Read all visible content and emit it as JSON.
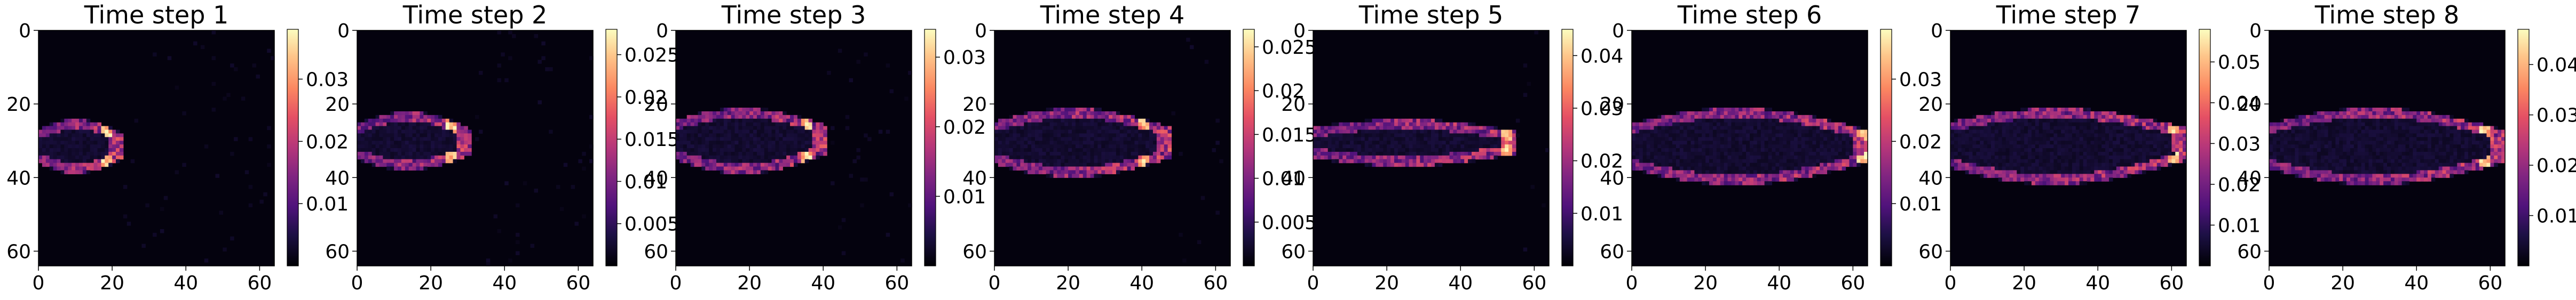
{
  "colormap": "magma",
  "chart_data": [
    {
      "type": "heatmap",
      "title": "Time step 1",
      "xticks": [
        0,
        20,
        40,
        60
      ],
      "yticks": [
        0,
        20,
        40,
        60
      ],
      "xlim": [
        0,
        64
      ],
      "ylim": [
        64,
        0
      ],
      "grid": "64x64",
      "colorbar": {
        "vmin": 0,
        "vmax": 0.038,
        "ticks": [
          0.01,
          0.02,
          0.03
        ]
      },
      "shape": {
        "x_end": 22,
        "center_row": 31,
        "upper_row": 25,
        "lower_row": 37,
        "hot_x": 18
      }
    },
    {
      "type": "heatmap",
      "title": "Time step 2",
      "xticks": [
        0,
        20,
        40,
        60
      ],
      "yticks": [
        0,
        20,
        40,
        60
      ],
      "xlim": [
        0,
        64
      ],
      "ylim": [
        64,
        0
      ],
      "grid": "64x64",
      "colorbar": {
        "vmin": 0,
        "vmax": 0.028,
        "ticks": [
          0.005,
          0.01,
          0.015,
          0.02,
          0.025
        ]
      },
      "shape": {
        "x_end": 30,
        "center_row": 30,
        "upper_row": 23,
        "lower_row": 36,
        "hot_x": 25
      }
    },
    {
      "type": "heatmap",
      "title": "Time step 3",
      "xticks": [
        0,
        20,
        40,
        60
      ],
      "yticks": [
        0,
        20,
        40,
        60
      ],
      "xlim": [
        0,
        64
      ],
      "ylim": [
        64,
        0
      ],
      "grid": "64x64",
      "colorbar": {
        "vmin": 0,
        "vmax": 0.034,
        "ticks": [
          0.01,
          0.02,
          0.03
        ]
      },
      "shape": {
        "x_end": 40,
        "center_row": 29,
        "upper_row": 22,
        "lower_row": 37,
        "hot_x": 35
      }
    },
    {
      "type": "heatmap",
      "title": "Time step 4",
      "xticks": [
        0,
        20,
        40,
        60
      ],
      "yticks": [
        0,
        20,
        40,
        60
      ],
      "xlim": [
        0,
        64
      ],
      "ylim": [
        64,
        0
      ],
      "grid": "64x64",
      "colorbar": {
        "vmin": 0,
        "vmax": 0.027,
        "ticks": [
          0.005,
          0.01,
          0.015,
          0.02,
          0.025
        ]
      },
      "shape": {
        "x_end": 47,
        "center_row": 30,
        "upper_row": 22,
        "lower_row": 38,
        "hot_x": 40
      }
    },
    {
      "type": "heatmap",
      "title": "Time step 5",
      "xticks": [
        0,
        20,
        40,
        60
      ],
      "yticks": [
        0,
        20,
        40,
        60
      ],
      "xlim": [
        0,
        64
      ],
      "ylim": [
        64,
        0
      ],
      "grid": "64x64",
      "colorbar": {
        "vmin": 0,
        "vmax": 0.045,
        "ticks": [
          0.01,
          0.02,
          0.03,
          0.04
        ]
      },
      "shape": {
        "x_end": 54,
        "center_row": 30,
        "upper_row": 25,
        "lower_row": 35,
        "hot_x": 52
      }
    },
    {
      "type": "heatmap",
      "title": "Time step 6",
      "xticks": [
        0,
        20,
        40,
        60
      ],
      "yticks": [
        0,
        20,
        40,
        60
      ],
      "xlim": [
        0,
        64
      ],
      "ylim": [
        64,
        0
      ],
      "grid": "64x64",
      "colorbar": {
        "vmin": 0,
        "vmax": 0.038,
        "ticks": [
          0.01,
          0.02,
          0.03
        ]
      },
      "shape": {
        "x_end": 63,
        "center_row": 31,
        "upper_row": 22,
        "lower_row": 40,
        "hot_x": 62
      }
    },
    {
      "type": "heatmap",
      "title": "Time step 7",
      "xticks": [
        0,
        20,
        40,
        60
      ],
      "yticks": [
        0,
        20,
        40,
        60
      ],
      "xlim": [
        0,
        64
      ],
      "ylim": [
        64,
        0
      ],
      "grid": "64x64",
      "colorbar": {
        "vmin": 0,
        "vmax": 0.058,
        "ticks": [
          0.01,
          0.02,
          0.03,
          0.04,
          0.05
        ]
      },
      "shape": {
        "x_end": 63,
        "center_row": 30,
        "upper_row": 22,
        "lower_row": 40,
        "hot_x": 60
      }
    },
    {
      "type": "heatmap",
      "title": "Time step 8",
      "xticks": [
        0,
        20,
        40,
        60
      ],
      "yticks": [
        0,
        20,
        40,
        60
      ],
      "xlim": [
        0,
        64
      ],
      "ylim": [
        64,
        0
      ],
      "grid": "64x64",
      "colorbar": {
        "vmin": 0,
        "vmax": 0.047,
        "ticks": [
          0.01,
          0.02,
          0.03,
          0.04
        ]
      },
      "shape": {
        "x_end": 63,
        "center_row": 31,
        "upper_row": 22,
        "lower_row": 40,
        "hot_x": 58
      }
    }
  ]
}
